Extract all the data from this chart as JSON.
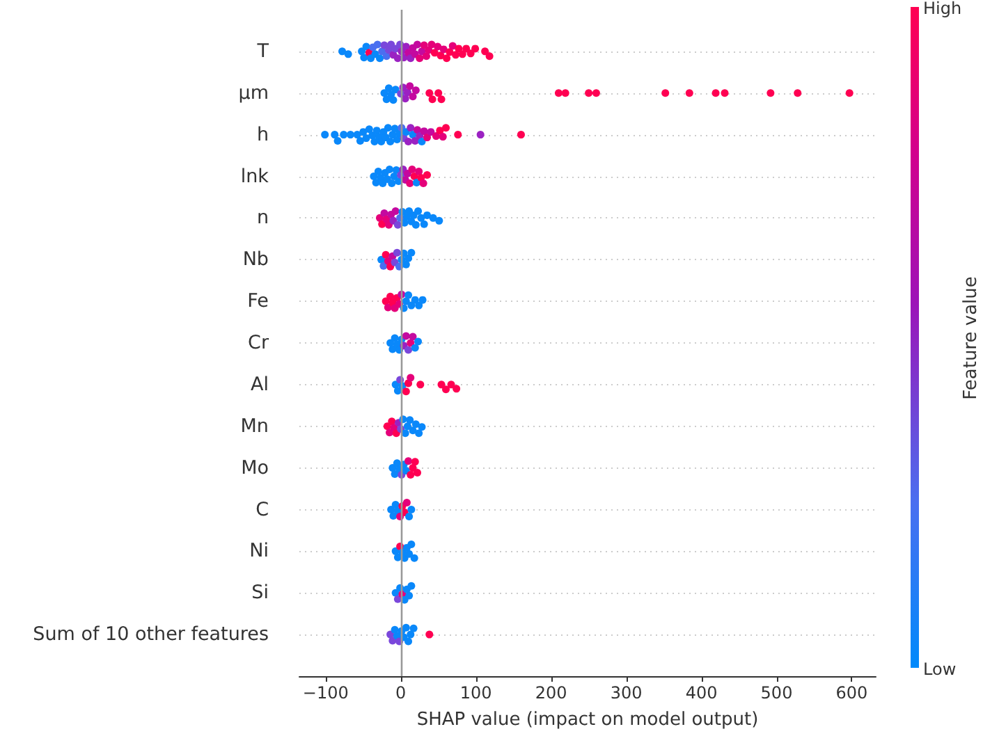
{
  "chart_data": {
    "type": "scatter",
    "orientation": "horizontal",
    "xlabel": "SHAP value (impact on model output)",
    "clabel": "Feature value",
    "annotations": [
      "High",
      "Low"
    ],
    "categories": [
      "T",
      "µm",
      "h",
      "lnk",
      "n",
      "Nb",
      "Fe",
      "Cr",
      "Al",
      "Mn",
      "Mo",
      "C",
      "Ni",
      "Si",
      "Sum of 10 other features"
    ],
    "xlim": [
      -135,
      632
    ],
    "xticks": [
      -100,
      0,
      100,
      200,
      300,
      400,
      500,
      600
    ],
    "grid": "y",
    "marker": "circle",
    "ref_lines": [
      {
        "axis": "x",
        "value": 0,
        "color": "#999999"
      }
    ],
    "series": [
      {
        "x": [
          "T",
          "T",
          "T",
          "T",
          "T",
          "T",
          "T",
          "T",
          "T",
          "T",
          "T",
          "T",
          "T",
          "T",
          "T",
          "T",
          "T",
          "T",
          "T",
          "T",
          "T",
          "T",
          "T",
          "T",
          "T",
          "T",
          "T",
          "T",
          "T",
          "T",
          "T",
          "T",
          "T",
          "T",
          "T",
          "T",
          "T",
          "T",
          "T",
          "T",
          "T",
          "T",
          "T",
          "T",
          "T",
          "T",
          "T",
          "T",
          "T"
        ],
        "values": [
          -78,
          -70,
          -52,
          -49,
          -46,
          -42,
          -40,
          -37,
          -34,
          -31,
          -28,
          -25,
          -22,
          -19,
          -16,
          -13,
          -10,
          -7,
          -4,
          -1,
          1,
          4,
          7,
          10,
          13,
          16,
          19,
          22,
          25,
          28,
          31,
          34,
          37,
          41,
          45,
          49,
          53,
          57,
          61,
          65,
          69,
          73,
          77,
          82,
          87,
          93,
          99,
          112,
          118
        ],
        "colors": [
          "#0a88fa",
          "#0a88fa",
          "#0a88fa",
          "#0a88fa",
          "#0a88fa",
          "#ff0052",
          "#0a88fa",
          "#4a6ff0",
          "#0a88fa",
          "#4a6ff0",
          "#0a88fa",
          "#4a6ff0",
          "#7a47db",
          "#4a6ff0",
          "#7a47db",
          "#7a47db",
          "#9b22c2",
          "#7a47db",
          "#9b22c2",
          "#7a47db",
          "#9b22c2",
          "#9b22c2",
          "#9b22c2",
          "#c4099f",
          "#9b22c2",
          "#c4099f",
          "#c4099f",
          "#c4099f",
          "#e5017a",
          "#c4099f",
          "#e5017a",
          "#e5017a",
          "#e5017a",
          "#e5017a",
          "#ff0052",
          "#e5017a",
          "#ff0052",
          "#e5017a",
          "#ff0052",
          "#ff0052",
          "#e5017a",
          "#ff0052",
          "#ff0052",
          "#ff0052",
          "#ff0052",
          "#ff0052",
          "#ff0052",
          "#ff0052",
          "#ff0052"
        ]
      },
      {
        "x": [
          "µm",
          "µm",
          "µm",
          "µm",
          "µm",
          "µm",
          "µm",
          "µm",
          "µm",
          "µm",
          "µm",
          "µm",
          "µm",
          "µm",
          "µm",
          "µm",
          "µm",
          "µm",
          "µm",
          "µm",
          "µm",
          "µm",
          "µm",
          "µm",
          "µm",
          "µm",
          "µm",
          "µm"
        ],
        "values": [
          -22,
          -19,
          -16,
          -13,
          -10,
          -7,
          0,
          3,
          6,
          9,
          12,
          16,
          20,
          38,
          42,
          50,
          54,
          210,
          219,
          250,
          260,
          352,
          384,
          419,
          431,
          492,
          528,
          597
        ],
        "colors": [
          "#0a88fa",
          "#0a88fa",
          "#0a88fa",
          "#0a88fa",
          "#0a88fa",
          "#0a88fa",
          "#7a47db",
          "#9b22c2",
          "#9b22c2",
          "#9b22c2",
          "#c4099f",
          "#c4099f",
          "#c4099f",
          "#ff0052",
          "#ff0052",
          "#ff0052",
          "#ff0052",
          "#ff0052",
          "#ff0052",
          "#ff0052",
          "#ff0052",
          "#ff0052",
          "#ff0052",
          "#ff0052",
          "#ff0052",
          "#ff0052",
          "#ff0052",
          "#ff0052"
        ]
      },
      {
        "x": [
          "h",
          "h",
          "h",
          "h",
          "h",
          "h",
          "h",
          "h",
          "h",
          "h",
          "h",
          "h",
          "h",
          "h",
          "h",
          "h",
          "h",
          "h",
          "h",
          "h",
          "h",
          "h",
          "h",
          "h",
          "h",
          "h",
          "h",
          "h",
          "h",
          "h",
          "h",
          "h",
          "h",
          "h",
          "h",
          "h",
          "h",
          "h",
          "h",
          "h",
          "h",
          "h",
          "h"
        ],
        "values": [
          -101,
          -88,
          -84,
          -76,
          -67,
          -58,
          -54,
          -50,
          -46,
          -42,
          -38,
          -35,
          -32,
          -29,
          -26,
          -23,
          -20,
          -17,
          -14,
          -11,
          -8,
          -5,
          -2,
          1,
          4,
          7,
          10,
          13,
          16,
          19,
          22,
          25,
          28,
          31,
          35,
          40,
          47,
          52,
          56,
          60,
          76,
          106,
          160
        ],
        "colors": [
          "#0a88fa",
          "#0a88fa",
          "#0a88fa",
          "#0a88fa",
          "#0a88fa",
          "#0a88fa",
          "#0a88fa",
          "#0a88fa",
          "#0a88fa",
          "#0a88fa",
          "#0a88fa",
          "#0a88fa",
          "#0a88fa",
          "#0a88fa",
          "#0a88fa",
          "#0a88fa",
          "#0a88fa",
          "#0a88fa",
          "#0a88fa",
          "#0a88fa",
          "#0a88fa",
          "#0a88fa",
          "#0a88fa",
          "#4a6ff0",
          "#7a47db",
          "#0a88fa",
          "#9b22c2",
          "#9b22c2",
          "#0a88fa",
          "#9b22c2",
          "#c4099f",
          "#9b22c2",
          "#0a88fa",
          "#c4099f",
          "#e5017a",
          "#c4099f",
          "#e5017a",
          "#ff0052",
          "#e5017a",
          "#ff0052",
          "#ff0052",
          "#9b22c2",
          "#ff0052"
        ]
      },
      {
        "x": [
          "lnk",
          "lnk",
          "lnk",
          "lnk",
          "lnk",
          "lnk",
          "lnk",
          "lnk",
          "lnk",
          "lnk",
          "lnk",
          "lnk",
          "lnk",
          "lnk",
          "lnk",
          "lnk",
          "lnk",
          "lnk",
          "lnk",
          "lnk",
          "lnk",
          "lnk",
          "lnk",
          "lnk"
        ],
        "values": [
          -36,
          -33,
          -30,
          -27,
          -24,
          -21,
          -18,
          -15,
          -12,
          -9,
          -6,
          -3,
          0,
          3,
          6,
          9,
          12,
          15,
          18,
          21,
          24,
          27,
          30,
          35
        ],
        "colors": [
          "#0a88fa",
          "#0a88fa",
          "#0a88fa",
          "#0a88fa",
          "#0a88fa",
          "#0a88fa",
          "#0a88fa",
          "#0a88fa",
          "#0a88fa",
          "#0a88fa",
          "#0a88fa",
          "#0a88fa",
          "#7a47db",
          "#9b22c2",
          "#c4099f",
          "#c4099f",
          "#e5017a",
          "#e5017a",
          "#ff0052",
          "#0a88fa",
          "#e5017a",
          "#ff0052",
          "#e5017a",
          "#ff0052"
        ]
      },
      {
        "x": [
          "n",
          "n",
          "n",
          "n",
          "n",
          "n",
          "n",
          "n",
          "n",
          "n",
          "n",
          "n",
          "n",
          "n",
          "n",
          "n",
          "n",
          "n",
          "n",
          "n",
          "n",
          "n",
          "n"
        ],
        "values": [
          -28,
          -25,
          -22,
          -19,
          -16,
          -13,
          -10,
          -7,
          -4,
          -1,
          2,
          5,
          8,
          11,
          14,
          17,
          20,
          23,
          27,
          31,
          35,
          43,
          51
        ],
        "colors": [
          "#e5017a",
          "#ff0052",
          "#c4099f",
          "#e5017a",
          "#e5017a",
          "#c4099f",
          "#9b22c2",
          "#c4099f",
          "#7a47db",
          "#4a6ff0",
          "#0a88fa",
          "#0a88fa",
          "#0a88fa",
          "#0a88fa",
          "#0a88fa",
          "#0a88fa",
          "#0a88fa",
          "#0a88fa",
          "#0a88fa",
          "#0a88fa",
          "#0a88fa",
          "#0a88fa",
          "#0a88fa"
        ]
      },
      {
        "x": [
          "Nb",
          "Nb",
          "Nb",
          "Nb",
          "Nb",
          "Nb",
          "Nb",
          "Nb",
          "Nb",
          "Nb",
          "Nb",
          "Nb",
          "Nb",
          "Nb"
        ],
        "values": [
          -26,
          -23,
          -20,
          -17,
          -14,
          -11,
          -8,
          -5,
          -2,
          1,
          4,
          7,
          10,
          14
        ],
        "colors": [
          "#0a88fa",
          "#4a6ff0",
          "#ff0052",
          "#e5017a",
          "#ff0052",
          "#c4099f",
          "#7a47db",
          "#7a47db",
          "#4a6ff0",
          "#0a88fa",
          "#0a88fa",
          "#0a88fa",
          "#0a88fa",
          "#0a88fa"
        ]
      },
      {
        "x": [
          "Fe",
          "Fe",
          "Fe",
          "Fe",
          "Fe",
          "Fe",
          "Fe",
          "Fe",
          "Fe",
          "Fe",
          "Fe",
          "Fe",
          "Fe",
          "Fe",
          "Fe"
        ],
        "values": [
          -20,
          -17,
          -14,
          -11,
          -8,
          -5,
          -2,
          1,
          4,
          7,
          10,
          14,
          19,
          24,
          29
        ],
        "colors": [
          "#ff0052",
          "#e5017a",
          "#ff0052",
          "#ff0052",
          "#e5017a",
          "#ff0052",
          "#e5017a",
          "#c4099f",
          "#0a88fa",
          "#0a88fa",
          "#0a88fa",
          "#0a88fa",
          "#0a88fa",
          "#0a88fa",
          "#0a88fa"
        ]
      },
      {
        "x": [
          "Cr",
          "Cr",
          "Cr",
          "Cr",
          "Cr",
          "Cr",
          "Cr",
          "Cr",
          "Cr",
          "Cr",
          "Cr",
          "Cr",
          "Cr"
        ],
        "values": [
          -14,
          -11,
          -8,
          -5,
          -2,
          1,
          4,
          7,
          10,
          13,
          16,
          19,
          23
        ],
        "colors": [
          "#0a88fa",
          "#0a88fa",
          "#0a88fa",
          "#0a88fa",
          "#0a88fa",
          "#0a88fa",
          "#9b22c2",
          "#c4099f",
          "#7a47db",
          "#e5017a",
          "#c4099f",
          "#0a88fa",
          "#0a88fa"
        ]
      },
      {
        "x": [
          "Al",
          "Al",
          "Al",
          "Al",
          "Al",
          "Al",
          "Al",
          "Al",
          "Al",
          "Al",
          "Al",
          "Al"
        ],
        "values": [
          -7,
          -4,
          -1,
          2,
          7,
          10,
          13,
          26,
          54,
          60,
          67,
          74
        ],
        "colors": [
          "#0a88fa",
          "#0a88fa",
          "#7a47db",
          "#0a88fa",
          "#ff0052",
          "#ff0052",
          "#e5017a",
          "#ff0052",
          "#ff0052",
          "#ff0052",
          "#ff0052",
          "#ff0052"
        ]
      },
      {
        "x": [
          "Mn",
          "Mn",
          "Mn",
          "Mn",
          "Mn",
          "Mn",
          "Mn",
          "Mn",
          "Mn",
          "Mn",
          "Mn",
          "Mn",
          "Mn",
          "Mn",
          "Mn"
        ],
        "values": [
          -18,
          -15,
          -12,
          -9,
          -6,
          -3,
          0,
          3,
          6,
          9,
          12,
          16,
          20,
          24,
          28
        ],
        "colors": [
          "#ff0052",
          "#e5017a",
          "#ff0052",
          "#e5017a",
          "#ff0052",
          "#9b22c2",
          "#7a47db",
          "#0a88fa",
          "#0a88fa",
          "#0a88fa",
          "#0a88fa",
          "#0a88fa",
          "#0a88fa",
          "#0a88fa",
          "#0a88fa"
        ]
      },
      {
        "x": [
          "Mo",
          "Mo",
          "Mo",
          "Mo",
          "Mo",
          "Mo",
          "Mo",
          "Mo",
          "Mo",
          "Mo",
          "Mo",
          "Mo"
        ],
        "values": [
          -11,
          -8,
          -5,
          -2,
          1,
          4,
          7,
          10,
          13,
          16,
          19,
          22
        ],
        "colors": [
          "#0a88fa",
          "#0a88fa",
          "#0a88fa",
          "#0a88fa",
          "#7a47db",
          "#0a88fa",
          "#0a88fa",
          "#e5017a",
          "#ff0052",
          "#ff0052",
          "#ff0052",
          "#ff0052"
        ]
      },
      {
        "x": [
          "C",
          "C",
          "C",
          "C",
          "C",
          "C",
          "C",
          "C",
          "C",
          "C"
        ],
        "values": [
          -13,
          -10,
          -7,
          -4,
          -1,
          2,
          5,
          8,
          11,
          14
        ],
        "colors": [
          "#0a88fa",
          "#0a88fa",
          "#0a88fa",
          "#0a88fa",
          "#e5017a",
          "#ff0052",
          "#ff0052",
          "#e5017a",
          "#0a88fa",
          "#0a88fa"
        ]
      },
      {
        "x": [
          "Ni",
          "Ni",
          "Ni",
          "Ni",
          "Ni",
          "Ni",
          "Ni",
          "Ni",
          "Ni"
        ],
        "values": [
          -7,
          -4,
          -1,
          2,
          5,
          8,
          11,
          14,
          18
        ],
        "colors": [
          "#0a88fa",
          "#0a88fa",
          "#ff0052",
          "#0a88fa",
          "#0a88fa",
          "#0a88fa",
          "#0a88fa",
          "#0a88fa",
          "#0a88fa"
        ]
      },
      {
        "x": [
          "Si",
          "Si",
          "Si",
          "Si",
          "Si",
          "Si",
          "Si",
          "Si"
        ],
        "values": [
          -7,
          -4,
          -1,
          2,
          5,
          8,
          11,
          14
        ],
        "colors": [
          "#0a88fa",
          "#7a47db",
          "#0a88fa",
          "#e5017a",
          "#0a88fa",
          "#0a88fa",
          "#0a88fa",
          "#0a88fa"
        ]
      },
      {
        "x": [
          "Sum of 10 other features",
          "Sum of 10 other features",
          "Sum of 10 other features",
          "Sum of 10 other features",
          "Sum of 10 other features",
          "Sum of 10 other features",
          "Sum of 10 other features",
          "Sum of 10 other features",
          "Sum of 10 other features",
          "Sum of 10 other features",
          "Sum of 10 other features",
          "Sum of 10 other features"
        ],
        "values": [
          -14,
          -11,
          -8,
          -5,
          -2,
          1,
          4,
          7,
          10,
          13,
          17,
          38
        ],
        "colors": [
          "#7a47db",
          "#7a47db",
          "#0a88fa",
          "#0a88fa",
          "#7a47db",
          "#0a88fa",
          "#0a88fa",
          "#0a88fa",
          "#0a88fa",
          "#0a88fa",
          "#0a88fa",
          "#ff0052"
        ]
      }
    ]
  }
}
